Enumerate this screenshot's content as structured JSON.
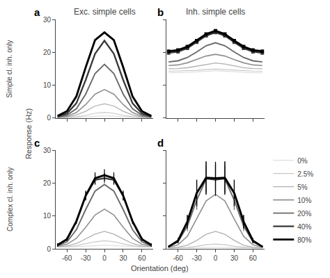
{
  "chart_data": [
    {
      "type": "line",
      "title": "Exc. simple cells",
      "ylabel": "Response (Hz)",
      "annotations": [
        "a",
        "Simple cl. inh. only"
      ],
      "x": [
        -75,
        -60,
        -45,
        -30,
        -15,
        0,
        15,
        30,
        45,
        60,
        75
      ],
      "xlim": [
        -78,
        78
      ],
      "xticks": [
        -60,
        -30,
        0,
        30,
        60
      ],
      "ylim": [
        0,
        30
      ],
      "yticks": [
        0,
        10,
        20,
        30
      ],
      "grid": false,
      "tick_labels": "y",
      "series": [
        {
          "name": "0%",
          "color": "#d8d8d8",
          "values": [
            0.1,
            0.11,
            0.21,
            0.4,
            0.59,
            0.68,
            0.59,
            0.4,
            0.21,
            0.11,
            0.1
          ]
        },
        {
          "name": "2.5%",
          "color": "#c8c8c8",
          "values": [
            0.11,
            0.21,
            0.42,
            0.83,
            1.46,
            1.74,
            1.46,
            0.83,
            0.42,
            0.21,
            0.11
          ]
        },
        {
          "name": "5%",
          "color": "#b0b0b0",
          "values": [
            0.12,
            0.34,
            0.95,
            2.07,
            3.68,
            4.35,
            3.68,
            2.07,
            0.95,
            0.34,
            0.12
          ]
        },
        {
          "name": "10%",
          "color": "#909090",
          "values": [
            0.23,
            0.58,
            1.66,
            4.11,
            7.29,
            8.68,
            7.29,
            4.11,
            1.66,
            0.58,
            0.23
          ]
        },
        {
          "name": "20%",
          "color": "#686868",
          "values": [
            0.35,
            0.93,
            2.8,
            7.27,
            13.57,
            16.36,
            13.57,
            7.27,
            2.8,
            0.93,
            0.35
          ]
        },
        {
          "name": "40%",
          "color": "#383838",
          "values": [
            0.49,
            1.42,
            4.5,
            11.61,
            19.57,
            23.54,
            19.57,
            11.61,
            4.5,
            1.42,
            0.49
          ]
        },
        {
          "name": "80%",
          "color": "#000000",
          "values": [
            0.64,
            2.11,
            6.57,
            15.45,
            23.75,
            26.07,
            23.75,
            15.45,
            6.57,
            2.11,
            0.64
          ]
        }
      ]
    },
    {
      "type": "line",
      "title": "Inh. simple cells",
      "annotations": [
        "b"
      ],
      "x": [
        -75,
        -60,
        -45,
        -30,
        -15,
        0,
        15,
        30,
        45,
        60,
        75
      ],
      "xlim": [
        -78,
        78
      ],
      "xticks": [
        -60,
        -30,
        0,
        30,
        60
      ],
      "ylim": [
        0,
        60
      ],
      "yticks": [
        0,
        20,
        40,
        60
      ],
      "grid": false,
      "tick_labels": false,
      "series": [
        {
          "name": "0%",
          "color": "#d8d8d8",
          "values": [
            27.5,
            27.61,
            27.9,
            28.11,
            28.5,
            28.78,
            28.5,
            28.11,
            27.9,
            27.61,
            27.5
          ]
        },
        {
          "name": "2.5%",
          "color": "#c8c8c8",
          "values": [
            28.5,
            28.61,
            28.9,
            29.11,
            29.5,
            29.78,
            29.5,
            29.11,
            28.9,
            28.61,
            28.5
          ]
        },
        {
          "name": "5%",
          "color": "#b0b0b0",
          "values": [
            30.0,
            30.12,
            30.62,
            31.61,
            32.87,
            33.54,
            32.87,
            31.61,
            30.62,
            30.12,
            30.0
          ]
        },
        {
          "name": "10%",
          "color": "#909090",
          "values": [
            32.01,
            32.34,
            33.63,
            35.61,
            37.75,
            38.81,
            37.75,
            35.61,
            33.63,
            32.34,
            32.01
          ]
        },
        {
          "name": "20%",
          "color": "#686868",
          "values": [
            34.13,
            34.86,
            36.86,
            40.22,
            44.01,
            45.84,
            44.01,
            40.22,
            36.86,
            34.86,
            34.13
          ]
        },
        {
          "name": "40%",
          "color": "#383838",
          "marker": "square",
          "values": [
            39.63,
            40.36,
            42.47,
            46.12,
            50.11,
            52.12,
            50.11,
            46.12,
            42.47,
            40.36,
            39.63
          ]
        },
        {
          "name": "80%",
          "color": "#000000",
          "marker": "square",
          "values": [
            40.63,
            41.36,
            43.47,
            47.12,
            51.11,
            53.12,
            51.11,
            47.12,
            43.47,
            41.36,
            40.63
          ]
        }
      ]
    },
    {
      "type": "line",
      "xlabel": "Orientation (deg)",
      "annotations": [
        "c",
        "Complex cl. inh. only"
      ],
      "x": [
        -75,
        -60,
        -45,
        -30,
        -15,
        0,
        15,
        30,
        45,
        60,
        75
      ],
      "xlim": [
        -78,
        78
      ],
      "xticks": [
        -60,
        -30,
        0,
        30,
        60
      ],
      "ylim": [
        0,
        30
      ],
      "yticks": [
        0,
        10,
        20,
        30
      ],
      "grid": false,
      "series": [
        {
          "name": "0%",
          "color": "#d8d8d8",
          "values": [
            0.5,
            0.51,
            0.61,
            0.8,
            0.99,
            1.08,
            0.99,
            0.8,
            0.61,
            0.51,
            0.5
          ]
        },
        {
          "name": "2.5%",
          "color": "#c8c8c8",
          "values": [
            0.6,
            0.63,
            0.93,
            1.51,
            2.16,
            2.44,
            2.16,
            1.51,
            0.93,
            0.63,
            0.6
          ]
        },
        {
          "name": "5%",
          "color": "#b0b0b0",
          "values": [
            0.71,
            0.86,
            1.59,
            3.0,
            4.45,
            5.29,
            4.45,
            3.0,
            1.59,
            0.86,
            0.71
          ]
        },
        {
          "name": "10%",
          "color": "#909090",
          "values": [
            0.84,
            1.35,
            3.18,
            6.55,
            10.29,
            12.07,
            10.29,
            6.55,
            3.18,
            1.35,
            0.84
          ]
        },
        {
          "name": "20%",
          "color": "#686868",
          "values": [
            1.0,
            2.1,
            5.8,
            11.95,
            17.57,
            19.57,
            17.57,
            11.95,
            5.8,
            2.1,
            1.0
          ]
        },
        {
          "name": "40%",
          "color": "#383838",
          "values": [
            1.16,
            2.93,
            8.32,
            16.13,
            20.96,
            21.5,
            20.96,
            16.13,
            8.32,
            2.93,
            1.16
          ],
          "errors": [
            0.5,
            0.5,
            0.7,
            1.2,
            1.5,
            1.5,
            1.5,
            1.2,
            0.7,
            0.5,
            0.5
          ]
        },
        {
          "name": "80%",
          "color": "#000000",
          "values": [
            1.16,
            2.93,
            8.32,
            16.18,
            21.46,
            22.39,
            21.46,
            16.18,
            8.32,
            2.93,
            1.16
          ],
          "errors": [
            0.5,
            0.5,
            0.8,
            1.5,
            1.8,
            1.8,
            1.8,
            1.5,
            0.8,
            0.5,
            0.5
          ]
        }
      ]
    },
    {
      "type": "line",
      "annotations": [
        "d"
      ],
      "x": [
        -75,
        -60,
        -45,
        -30,
        -15,
        0,
        15,
        30,
        45,
        60,
        75
      ],
      "xlim": [
        -78,
        78
      ],
      "xticks": [
        -60,
        -30,
        0,
        30,
        60
      ],
      "ylim": [
        0,
        60
      ],
      "yticks": [
        0,
        20,
        40,
        60
      ],
      "grid": false,
      "tick_labels": "x",
      "legend": "right",
      "series": [
        {
          "name": "0%",
          "color": "#d8d8d8",
          "values": [
            0.5,
            0.51,
            0.6,
            0.7,
            0.8,
            0.88,
            0.8,
            0.7,
            0.6,
            0.51,
            0.5
          ]
        },
        {
          "name": "2.5%",
          "color": "#c8c8c8",
          "values": [
            0.51,
            0.62,
            0.93,
            1.54,
            2.45,
            2.89,
            2.45,
            1.54,
            0.93,
            0.62,
            0.51
          ]
        },
        {
          "name": "5%",
          "color": "#b0b0b0",
          "values": [
            0.63,
            0.99,
            2.2,
            5.11,
            8.79,
            10.57,
            8.79,
            5.11,
            2.2,
            0.99,
            0.63
          ]
        },
        {
          "name": "10%",
          "color": "#909090",
          "values": [
            0.93,
            2.41,
            7.64,
            18.11,
            29.14,
            33.14,
            29.14,
            18.11,
            7.64,
            2.41,
            0.93
          ]
        },
        {
          "name": "20%",
          "color": "#686868",
          "values": [
            1.27,
            4.25,
            13.8,
            29.68,
            42.4,
            43.21,
            42.4,
            29.68,
            13.8,
            4.25,
            1.27
          ],
          "errors": [
            0.5,
            1.0,
            3.0,
            6.0,
            8.0,
            8.0,
            8.0,
            6.0,
            3.0,
            1.0,
            0.5
          ]
        },
        {
          "name": "40%",
          "color": "#383838",
          "values": [
            1.32,
            4.97,
            16.75,
            33.93,
            42.77,
            42.03,
            42.77,
            33.93,
            16.75,
            4.97,
            1.32
          ],
          "errors": [
            0.5,
            1.5,
            4.0,
            8.0,
            10.0,
            10.0,
            10.0,
            8.0,
            4.0,
            1.5,
            0.5
          ]
        },
        {
          "name": "80%",
          "color": "#000000",
          "values": [
            1.32,
            4.91,
            16.36,
            33.93,
            43.27,
            42.92,
            43.27,
            33.93,
            16.36,
            4.91,
            1.32
          ],
          "errors": [
            0.5,
            1.5,
            4.0,
            8.0,
            10.0,
            10.0,
            10.0,
            8.0,
            4.0,
            1.5,
            0.5
          ]
        }
      ]
    }
  ]
}
